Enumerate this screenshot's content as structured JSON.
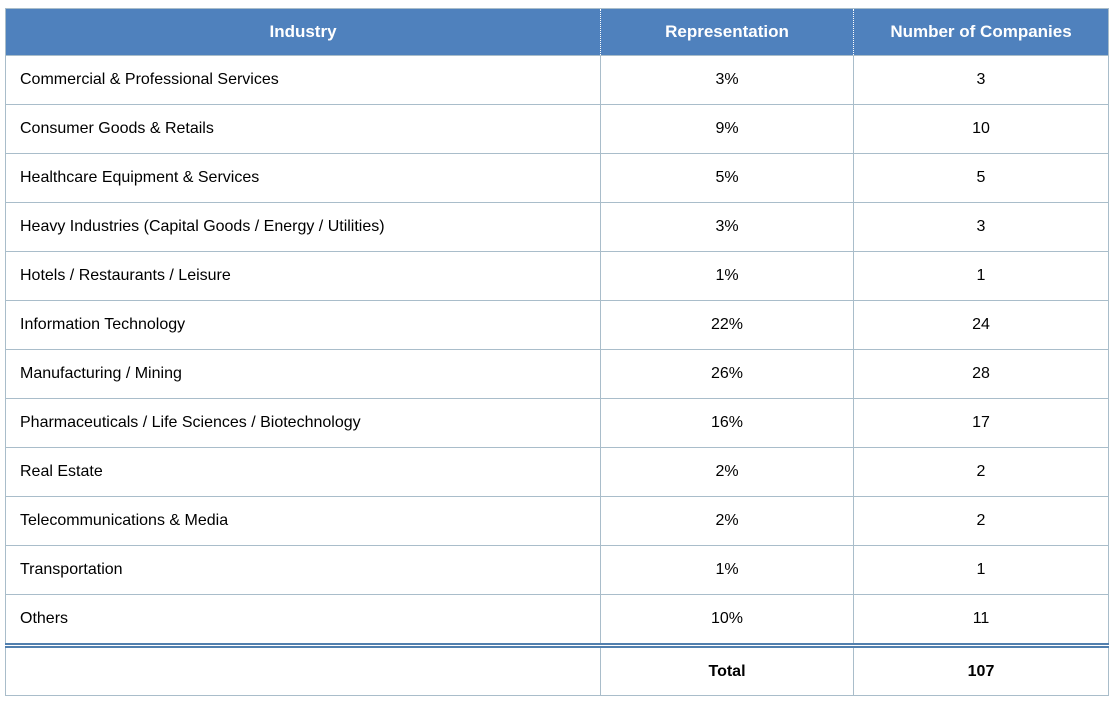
{
  "table": {
    "columns": [
      "Industry",
      "Representation",
      "Number of Companies"
    ],
    "rows": [
      {
        "industry": "Commercial & Professional Services",
        "representation": "3%",
        "companies": "3"
      },
      {
        "industry": "Consumer Goods & Retails",
        "representation": "9%",
        "companies": "10"
      },
      {
        "industry": "Healthcare Equipment & Services",
        "representation": "5%",
        "companies": "5"
      },
      {
        "industry": "Heavy Industries (Capital Goods / Energy / Utilities)",
        "representation": "3%",
        "companies": "3"
      },
      {
        "industry": "Hotels / Restaurants / Leisure",
        "representation": "1%",
        "companies": "1"
      },
      {
        "industry": "Information Technology",
        "representation": "22%",
        "companies": "24"
      },
      {
        "industry": "Manufacturing / Mining",
        "representation": "26%",
        "companies": "28"
      },
      {
        "industry": "Pharmaceuticals / Life Sciences / Biotechnology",
        "representation": "16%",
        "companies": "17"
      },
      {
        "industry": "Real Estate",
        "representation": "2%",
        "companies": "2"
      },
      {
        "industry": "Telecommunications & Media",
        "representation": "2%",
        "companies": "2"
      },
      {
        "industry": "Transportation",
        "representation": "1%",
        "companies": "1"
      },
      {
        "industry": "Others",
        "representation": "10%",
        "companies": "11"
      }
    ],
    "total": {
      "label": "Total",
      "companies": "107"
    }
  },
  "colors": {
    "header_bg": "#4f81bd",
    "header_text": "#ffffff",
    "grid_line": "#a9bdca",
    "double_rule": "#517fae",
    "body_text": "#000000"
  }
}
